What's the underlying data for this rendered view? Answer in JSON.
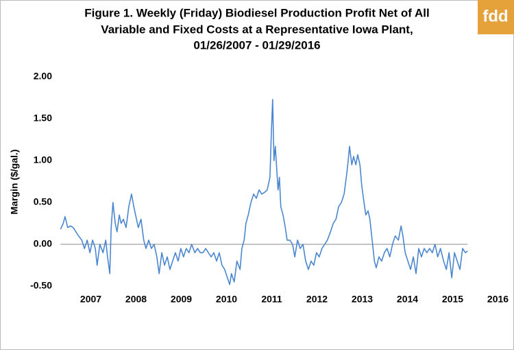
{
  "logo": "fdd",
  "chart_data": {
    "type": "line",
    "title": [
      "Figure 1. Weekly (Friday) Biodiesel Production Profit Net of All",
      "Variable and Fixed Costs at a Representative Iowa Plant,",
      "01/26/2007  - 01/29/2016"
    ],
    "y_label": "Margin ($/gal.)",
    "xlim": [
      2007,
      2017
    ],
    "xticks": [
      {
        "value": 2007.75,
        "label": "2007"
      },
      {
        "value": 2008.75,
        "label": "2008"
      },
      {
        "value": 2009.75,
        "label": "2009"
      },
      {
        "value": 2010.75,
        "label": "2010"
      },
      {
        "value": 2011.75,
        "label": "2011"
      },
      {
        "value": 2012.75,
        "label": "2012"
      },
      {
        "value": 2013.75,
        "label": "2013"
      },
      {
        "value": 2014.75,
        "label": "2014"
      },
      {
        "value": 2015.75,
        "label": "2015"
      },
      {
        "value": 2016.75,
        "label": "2016"
      }
    ],
    "ylim": [
      -0.5,
      2.0
    ],
    "yticks": [
      {
        "value": -0.5,
        "label": "-0.50"
      },
      {
        "value": 0,
        "label": "0.00"
      },
      {
        "value": 0.5,
        "label": "0.50"
      },
      {
        "value": 1.0,
        "label": "1.00"
      },
      {
        "value": 1.5,
        "label": "1.50"
      },
      {
        "value": 2.0,
        "label": "2.00"
      }
    ],
    "grid": false,
    "x": [
      2007.08,
      2007.14,
      2007.18,
      2007.24,
      2007.3,
      2007.36,
      2007.42,
      2007.48,
      2007.55,
      2007.61,
      2007.67,
      2007.73,
      2007.79,
      2007.85,
      2007.89,
      2007.95,
      2008.02,
      2008.08,
      2008.12,
      2008.17,
      2008.2,
      2008.24,
      2008.29,
      2008.33,
      2008.38,
      2008.42,
      2008.47,
      2008.53,
      2008.59,
      2008.65,
      2008.7,
      2008.74,
      2008.8,
      2008.86,
      2008.92,
      2008.97,
      2009.03,
      2009.09,
      2009.15,
      2009.21,
      2009.26,
      2009.32,
      2009.38,
      2009.44,
      2009.5,
      2009.56,
      2009.62,
      2009.68,
      2009.74,
      2009.8,
      2009.86,
      2009.92,
      2009.98,
      2010.05,
      2010.11,
      2010.17,
      2010.23,
      2010.29,
      2010.35,
      2010.41,
      2010.47,
      2010.53,
      2010.59,
      2010.65,
      2010.71,
      2010.77,
      2010.82,
      2010.86,
      2010.92,
      2010.98,
      2011.05,
      2011.09,
      2011.14,
      2011.18,
      2011.23,
      2011.29,
      2011.35,
      2011.41,
      2011.47,
      2011.53,
      2011.59,
      2011.65,
      2011.71,
      2011.74,
      2011.77,
      2011.8,
      2011.83,
      2011.86,
      2011.89,
      2011.92,
      2011.95,
      2012.0,
      2012.05,
      2012.09,
      2012.15,
      2012.21,
      2012.26,
      2012.32,
      2012.38,
      2012.44,
      2012.5,
      2012.56,
      2012.62,
      2012.68,
      2012.74,
      2012.8,
      2012.86,
      2012.92,
      2012.98,
      2013.05,
      2013.11,
      2013.17,
      2013.23,
      2013.29,
      2013.35,
      2013.41,
      2013.44,
      2013.47,
      2013.52,
      2013.56,
      2013.61,
      2013.65,
      2013.7,
      2013.74,
      2013.79,
      2013.83,
      2013.88,
      2013.92,
      2013.97,
      2014.02,
      2014.06,
      2014.12,
      2014.18,
      2014.24,
      2014.3,
      2014.36,
      2014.42,
      2014.48,
      2014.55,
      2014.61,
      2014.65,
      2014.7,
      2014.76,
      2014.82,
      2014.88,
      2014.94,
      2015.0,
      2015.06,
      2015.12,
      2015.18,
      2015.24,
      2015.3,
      2015.36,
      2015.42,
      2015.48,
      2015.55,
      2015.61,
      2015.67,
      2015.73,
      2015.79,
      2015.85,
      2015.91,
      2015.97,
      2016.03,
      2016.08
    ],
    "series": [
      {
        "name": "Margin",
        "color": "#4a86cf",
        "values": [
          0.18,
          0.25,
          0.33,
          0.2,
          0.22,
          0.2,
          0.15,
          0.1,
          0.05,
          -0.05,
          0.05,
          -0.1,
          0.05,
          -0.05,
          -0.25,
          0.0,
          -0.1,
          0.05,
          -0.15,
          -0.35,
          0.2,
          0.5,
          0.25,
          0.15,
          0.35,
          0.25,
          0.3,
          0.2,
          0.45,
          0.6,
          0.45,
          0.35,
          0.2,
          0.3,
          0.05,
          -0.05,
          0.05,
          -0.05,
          0.0,
          -0.15,
          -0.35,
          -0.1,
          -0.25,
          -0.15,
          -0.3,
          -0.2,
          -0.1,
          -0.2,
          -0.05,
          -0.15,
          -0.05,
          -0.1,
          0.0,
          -0.1,
          -0.05,
          -0.1,
          -0.1,
          -0.05,
          -0.1,
          -0.15,
          -0.1,
          -0.2,
          -0.1,
          -0.25,
          -0.3,
          -0.4,
          -0.48,
          -0.35,
          -0.45,
          -0.2,
          -0.3,
          -0.05,
          0.05,
          0.25,
          0.35,
          0.5,
          0.6,
          0.55,
          0.65,
          0.6,
          0.62,
          0.65,
          0.8,
          1.3,
          1.73,
          1.0,
          1.17,
          0.9,
          0.65,
          0.8,
          0.45,
          0.35,
          0.2,
          0.05,
          0.05,
          0.0,
          -0.15,
          0.05,
          -0.05,
          0.0,
          -0.2,
          -0.3,
          -0.2,
          -0.25,
          -0.1,
          -0.15,
          -0.05,
          0.0,
          0.05,
          0.15,
          0.25,
          0.3,
          0.45,
          0.5,
          0.6,
          0.85,
          1.0,
          1.17,
          0.95,
          1.05,
          0.95,
          1.07,
          0.95,
          0.7,
          0.5,
          0.35,
          0.4,
          0.3,
          0.05,
          -0.2,
          -0.28,
          -0.15,
          -0.2,
          -0.1,
          -0.05,
          -0.15,
          0.0,
          0.1,
          0.05,
          0.22,
          0.1,
          -0.1,
          -0.2,
          -0.3,
          -0.15,
          -0.35,
          -0.05,
          -0.15,
          -0.05,
          -0.1,
          -0.05,
          -0.1,
          0.0,
          -0.15,
          -0.05,
          -0.2,
          -0.3,
          -0.1,
          -0.4,
          -0.1,
          -0.2,
          -0.3,
          -0.05,
          -0.1,
          -0.08
        ]
      }
    ]
  }
}
